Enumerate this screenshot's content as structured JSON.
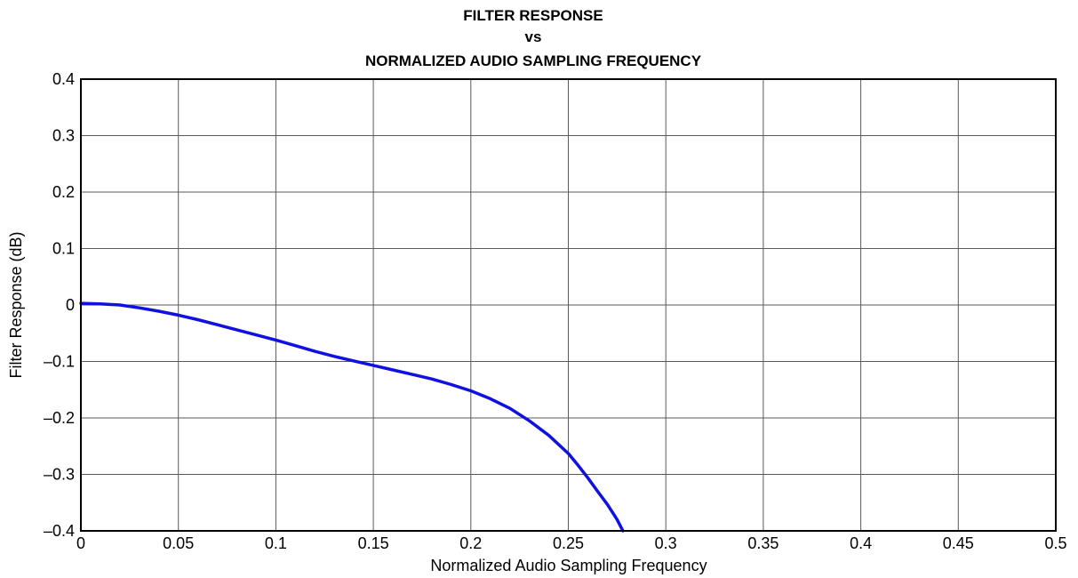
{
  "chart_data": {
    "type": "line",
    "title": [
      "FILTER RESPONSE",
      "vs",
      "NORMALIZED AUDIO SAMPLING FREQUENCY"
    ],
    "xlabel": "Normalized Audio Sampling Frequency",
    "ylabel": "Filter Response (dB)",
    "xlim": [
      0,
      0.5
    ],
    "ylim": [
      -0.4,
      0.4
    ],
    "x_ticks": [
      0,
      0.05,
      0.1,
      0.15,
      0.2,
      0.25,
      0.3,
      0.35,
      0.4,
      0.45,
      0.5
    ],
    "x_tick_labels": [
      "0",
      "0.05",
      "0.1",
      "0.15",
      "0.2",
      "0.25",
      "0.3",
      "0.35",
      "0.4",
      "0.45",
      "0.5"
    ],
    "y_ticks": [
      0.4,
      0.3,
      0.2,
      0.1,
      0,
      -0.1,
      -0.2,
      -0.3,
      -0.4
    ],
    "y_tick_labels": [
      "0.4",
      "0.3",
      "0.2",
      "0.1",
      "0",
      "–0.1",
      "–0.2",
      "–0.3",
      "–0.4"
    ],
    "grid": true,
    "series": [
      {
        "color": "#1010e0",
        "x": [
          0,
          0.01,
          0.02,
          0.03,
          0.04,
          0.05,
          0.06,
          0.07,
          0.08,
          0.09,
          0.1,
          0.11,
          0.12,
          0.13,
          0.14,
          0.15,
          0.16,
          0.17,
          0.18,
          0.19,
          0.2,
          0.21,
          0.22,
          0.23,
          0.24,
          0.25,
          0.255,
          0.26,
          0.265,
          0.27,
          0.275,
          0.278
        ],
        "y": [
          0.003,
          0.002,
          0.0,
          -0.005,
          -0.011,
          -0.018,
          -0.026,
          -0.035,
          -0.044,
          -0.053,
          -0.062,
          -0.072,
          -0.082,
          -0.091,
          -0.099,
          -0.107,
          -0.115,
          -0.123,
          -0.131,
          -0.141,
          -0.152,
          -0.166,
          -0.183,
          -0.205,
          -0.231,
          -0.263,
          -0.284,
          -0.306,
          -0.33,
          -0.353,
          -0.38,
          -0.4
        ]
      }
    ]
  }
}
